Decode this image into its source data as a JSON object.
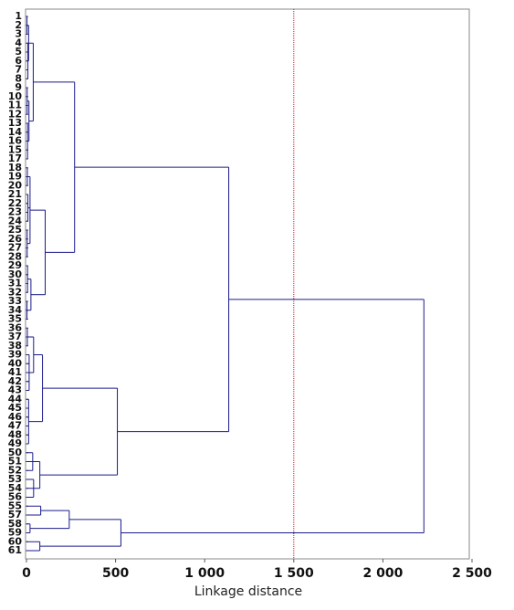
{
  "chart_data": {
    "type": "dendrogram",
    "xlabel": "Linkage distance",
    "leaf_labels": [
      "1",
      "2",
      "3",
      "4",
      "5",
      "6",
      "7",
      "8",
      "9",
      "10",
      "11",
      "12",
      "13",
      "14",
      "16",
      "15",
      "17",
      "18",
      "19",
      "20",
      "21",
      "22",
      "23",
      "24",
      "25",
      "26",
      "27",
      "28",
      "29",
      "30",
      "31",
      "32",
      "33",
      "34",
      "35",
      "36",
      "37",
      "38",
      "39",
      "40",
      "41",
      "42",
      "43",
      "44",
      "45",
      "46",
      "47",
      "48",
      "49",
      "50",
      "51",
      "52",
      "53",
      "54",
      "56",
      "55",
      "57",
      "58",
      "59",
      "60",
      "61"
    ],
    "xlim": [
      0,
      2500
    ],
    "xticks": [
      0,
      500,
      {
        "value": 1000,
        "label": "1 000"
      },
      {
        "value": 1500,
        "label": "1 500"
      },
      {
        "value": 2000,
        "label": "2 000"
      },
      {
        "value": 2500,
        "label": "2 500"
      }
    ],
    "color": "#1a1a8c",
    "threshold": 1500,
    "threshold_color": "#cc1a1a",
    "tree": {
      "height": 2230,
      "children": [
        {
          "height": 1135,
          "children": [
            {
              "height": 270,
              "children": [
                {
                  "height": 38,
                  "children": [
                    {
                      "height": 12,
                      "children": [
                        {
                          "height": 3,
                          "children": [
                            0,
                            1,
                            2
                          ]
                        },
                        {
                          "height": 8,
                          "children": [
                            3,
                            4,
                            5,
                            6,
                            7
                          ]
                        }
                      ]
                    },
                    {
                      "height": 14,
                      "children": [
                        {
                          "height": 4,
                          "children": [
                            8,
                            9,
                            10,
                            11
                          ]
                        },
                        {
                          "height": 6,
                          "children": [
                            12,
                            13,
                            14,
                            15,
                            16
                          ]
                        }
                      ]
                    }
                  ]
                },
                {
                  "height": 105,
                  "children": [
                    {
                      "height": 20,
                      "children": [
                        {
                          "height": 5,
                          "children": [
                            17,
                            18,
                            19
                          ]
                        },
                        {
                          "height": 8,
                          "children": [
                            20,
                            21,
                            22,
                            23
                          ]
                        },
                        {
                          "height": 4,
                          "children": [
                            24,
                            25,
                            26,
                            27
                          ]
                        }
                      ]
                    },
                    {
                      "height": 25,
                      "children": [
                        {
                          "height": 6,
                          "children": [
                            28,
                            29,
                            30,
                            31
                          ]
                        },
                        {
                          "height": 3,
                          "children": [
                            32,
                            33,
                            34
                          ]
                        }
                      ]
                    }
                  ]
                }
              ]
            },
            {
              "height": 510,
              "children": [
                {
                  "height": 90,
                  "children": [
                    {
                      "height": 40,
                      "children": [
                        {
                          "height": 5,
                          "children": [
                            35,
                            36,
                            37
                          ]
                        },
                        {
                          "height": 15,
                          "children": [
                            38,
                            39,
                            40,
                            41,
                            42
                          ]
                        }
                      ]
                    },
                    {
                      "height": 12,
                      "children": [
                        43,
                        44,
                        45,
                        46,
                        47,
                        48
                      ]
                    }
                  ]
                },
                {
                  "height": 75,
                  "children": [
                    {
                      "height": 35,
                      "children": [
                        49,
                        50,
                        51
                      ]
                    },
                    {
                      "height": 40,
                      "children": [
                        52,
                        53,
                        54
                      ]
                    }
                  ]
                }
              ]
            }
          ]
        },
        {
          "height": 530,
          "children": [
            {
              "height": 240,
              "children": [
                {
                  "height": 80,
                  "children": [
                    55,
                    56
                  ]
                },
                {
                  "height": 20,
                  "children": [
                    57,
                    58
                  ]
                }
              ]
            },
            {
              "height": 75,
              "children": [
                59,
                60
              ]
            }
          ]
        }
      ]
    }
  }
}
